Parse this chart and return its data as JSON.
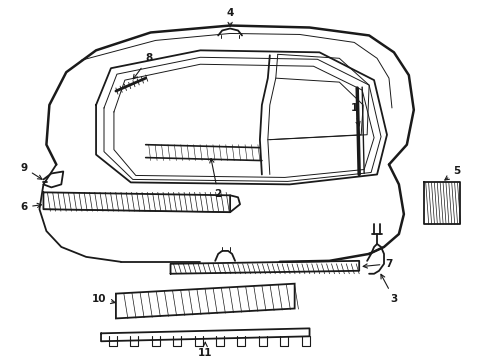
{
  "bg_color": "#ffffff",
  "line_color": "#1a1a1a",
  "fig_width": 4.9,
  "fig_height": 3.6,
  "dpi": 100,
  "label_fontsize": 7.5,
  "lw_main": 1.3,
  "lw_thin": 0.7,
  "lw_thick": 1.8
}
